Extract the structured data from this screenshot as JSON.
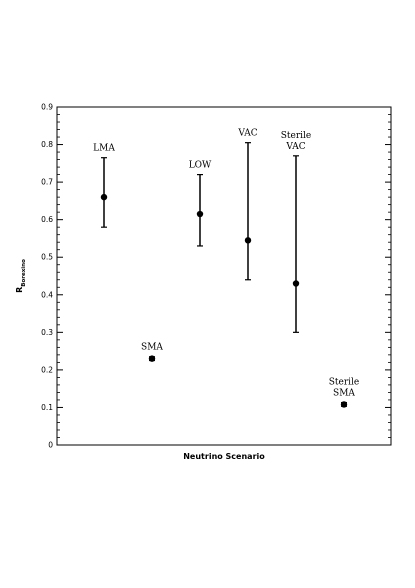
{
  "chart_data": {
    "type": "scatter",
    "title": "",
    "xlabel": "Neutrino Scenario",
    "ylabel": "R",
    "ylabel_subscript": "Borexino",
    "ylim": [
      0,
      0.9
    ],
    "yticks": [
      "0",
      "0.1",
      "0.2",
      "0.3",
      "0.4",
      "0.5",
      "0.6",
      "0.7",
      "0.8",
      "0.9"
    ],
    "grid": false,
    "legend": "none",
    "points": [
      {
        "label_lines": [
          "LMA"
        ],
        "y": 0.66,
        "err_low": 0.58,
        "err_high": 0.765
      },
      {
        "label_lines": [
          "SMA"
        ],
        "y": 0.23,
        "err_low": 0.225,
        "err_high": 0.235
      },
      {
        "label_lines": [
          "LOW"
        ],
        "y": 0.615,
        "err_low": 0.53,
        "err_high": 0.72
      },
      {
        "label_lines": [
          "VAC"
        ],
        "y": 0.545,
        "err_low": 0.44,
        "err_high": 0.805
      },
      {
        "label_lines": [
          "Sterile",
          "VAC"
        ],
        "y": 0.43,
        "err_low": 0.3,
        "err_high": 0.77
      },
      {
        "label_lines": [
          "Sterile",
          "SMA"
        ],
        "y": 0.108,
        "err_low": 0.103,
        "err_high": 0.113
      }
    ]
  }
}
